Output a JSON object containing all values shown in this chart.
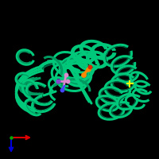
{
  "background_color": "#000000",
  "protein_color_light": "#00c87a",
  "protein_color_mid": "#009960",
  "protein_color_dark": "#006644",
  "ligand_orange": "#ff8800",
  "ligand_red": "#dd2200",
  "ligand_pink": "#dd88cc",
  "ligand_blue": "#4444ff",
  "ligand_violet": "#8844cc",
  "yellow_color": "#ffff00",
  "axis_red": "#dd0000",
  "axis_blue": "#0000dd",
  "axis_green": "#00aa00"
}
